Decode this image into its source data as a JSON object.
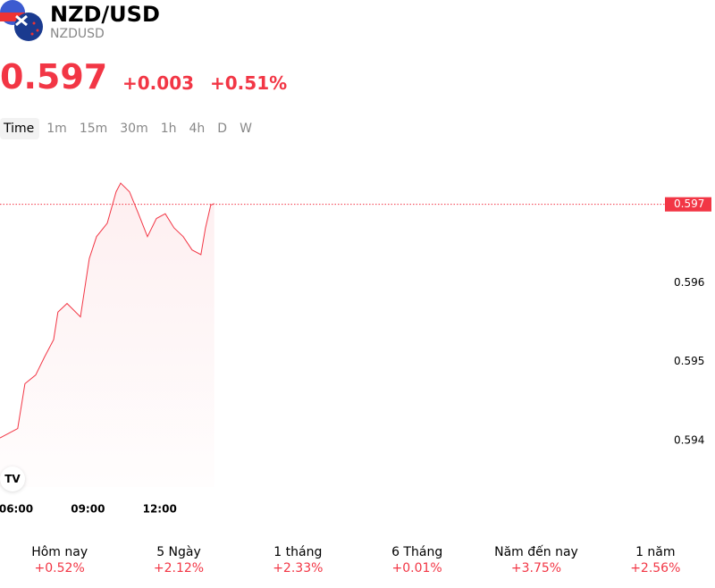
{
  "header": {
    "title": "NZD/USD",
    "symbol": "NZDUSD",
    "price": 0.597,
    "change": "+0.003",
    "change_percent": "+0.51%"
  },
  "intervals": [
    "Time",
    "1m",
    "15m",
    "30m",
    "1h",
    "4h",
    "D",
    "W"
  ],
  "chart_data": {
    "type": "line",
    "x": [
      5.33,
      6.07,
      6.37,
      6.82,
      7.19,
      7.57,
      7.75,
      8.13,
      8.69,
      9.06,
      9.36,
      9.81,
      10.18,
      10.37,
      10.74,
      11.11,
      11.49,
      11.86,
      12.23,
      12.6,
      12.98,
      13.35,
      13.72,
      13.91,
      14.13,
      14.28
    ],
    "series": [
      {
        "name": "NZDUSD",
        "color": "#f23645",
        "values": [
          0.59403,
          0.59415,
          0.59472,
          0.59483,
          0.59506,
          0.59528,
          0.59563,
          0.59574,
          0.59557,
          0.59631,
          0.59659,
          0.59676,
          0.59716,
          0.59727,
          0.59716,
          0.59688,
          0.59659,
          0.59682,
          0.59688,
          0.5967,
          0.59659,
          0.59642,
          0.59636,
          0.5967,
          0.59699,
          0.59701
        ]
      }
    ],
    "xlim": [
      5.33,
      32.95
    ],
    "xticks": [
      {
        "value": 6,
        "label": "06:00"
      },
      {
        "value": 9,
        "label": "09:00"
      },
      {
        "value": 12,
        "label": "12:00"
      }
    ],
    "ylim": [
      0.59335,
      0.59778
    ],
    "yticks": [
      0.594,
      0.595,
      0.596
    ]
  },
  "periods": [
    {
      "label": "Hôm nay",
      "change": "+0.52%"
    },
    {
      "label": "5 Ngày",
      "change": "+2.12%"
    },
    {
      "label": "1 tháng",
      "change": "+2.33%"
    },
    {
      "label": "6 Tháng",
      "change": "+0.01%"
    },
    {
      "label": "Năm đến nay",
      "change": "+3.75%"
    },
    {
      "label": "1 năm",
      "change": "+2.56%"
    }
  ]
}
